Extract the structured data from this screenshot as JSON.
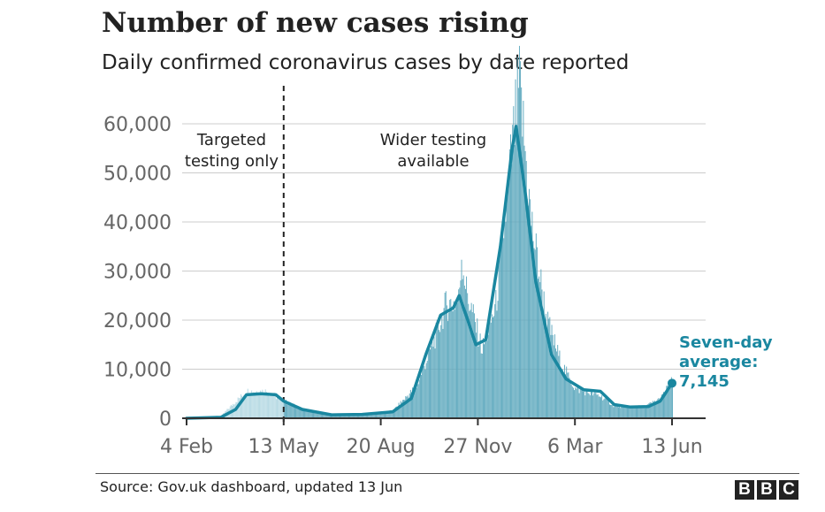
{
  "title": "Number of new cases rising",
  "subtitle": "Daily confirmed coronavirus cases by date reported",
  "source": "Source: Gov.uk dashboard, updated 13 Jun",
  "logo": [
    "B",
    "B",
    "C"
  ],
  "colors": {
    "bar_targeted": "#b5d9e3",
    "bar_wider": "#5fa9be",
    "line": "#1a87a0",
    "annotation": "#1a87a0",
    "grid": "#cccccc",
    "axis_text": "#666666"
  },
  "chart_data": {
    "type": "bar+line",
    "title": "Number of new cases rising",
    "subtitle": "Daily confirmed coronavirus cases by date reported",
    "ylim": [
      0,
      60000
    ],
    "yticks": [
      0,
      10000,
      20000,
      30000,
      40000,
      50000,
      60000
    ],
    "ytick_labels": [
      "0",
      "10,000",
      "20,000",
      "30,000",
      "40,000",
      "50,000",
      "60,000"
    ],
    "xtick_labels": [
      "4 Feb",
      "13 May",
      "20 Aug",
      "27 Nov",
      "6 Mar",
      "13 Jun"
    ],
    "x_range": [
      "2020-02-04",
      "2021-06-13"
    ],
    "grid": true,
    "divider_date": "2020-05-13",
    "phase_labels": [
      {
        "id": "targeted",
        "lines": [
          "Targeted",
          "testing only"
        ]
      },
      {
        "id": "wider",
        "lines": [
          "Wider testing",
          "available"
        ]
      }
    ],
    "seven_day_label": [
      "Seven-day",
      "average:",
      "7,145"
    ],
    "seven_day_value": 7145,
    "series": [
      {
        "name": "Daily confirmed cases",
        "kind": "bar",
        "daily_values_monthly_outline": [
          {
            "date": "2020-02-04",
            "value": 0
          },
          {
            "date": "2020-03-10",
            "value": 500
          },
          {
            "date": "2020-03-25",
            "value": 3500
          },
          {
            "date": "2020-04-05",
            "value": 5500
          },
          {
            "date": "2020-04-25",
            "value": 5500
          },
          {
            "date": "2020-05-13",
            "value": 3500
          },
          {
            "date": "2020-06-01",
            "value": 1800
          },
          {
            "date": "2020-07-01",
            "value": 700
          },
          {
            "date": "2020-08-01",
            "value": 800
          },
          {
            "date": "2020-09-01",
            "value": 1500
          },
          {
            "date": "2020-09-25",
            "value": 6500
          },
          {
            "date": "2020-10-15",
            "value": 17000
          },
          {
            "date": "2020-10-25",
            "value": 23000
          },
          {
            "date": "2020-11-07",
            "value": 24000
          },
          {
            "date": "2020-11-10",
            "value": 33500
          },
          {
            "date": "2020-11-15",
            "value": 26000
          },
          {
            "date": "2020-12-01",
            "value": 14000
          },
          {
            "date": "2020-12-15",
            "value": 23000
          },
          {
            "date": "2020-12-29",
            "value": 50000
          },
          {
            "date": "2021-01-08",
            "value": 68000
          },
          {
            "date": "2021-01-20",
            "value": 40000
          },
          {
            "date": "2021-02-05",
            "value": 20000
          },
          {
            "date": "2021-02-20",
            "value": 11000
          },
          {
            "date": "2021-03-06",
            "value": 6000
          },
          {
            "date": "2021-04-01",
            "value": 4500
          },
          {
            "date": "2021-04-15",
            "value": 2500
          },
          {
            "date": "2021-05-15",
            "value": 2300
          },
          {
            "date": "2021-06-01",
            "value": 4000
          },
          {
            "date": "2021-06-13",
            "value": 7700
          }
        ]
      },
      {
        "name": "Seven-day average",
        "kind": "line",
        "points": [
          {
            "date": "2020-02-04",
            "value": 0
          },
          {
            "date": "2020-03-10",
            "value": 200
          },
          {
            "date": "2020-03-25",
            "value": 1800
          },
          {
            "date": "2020-04-05",
            "value": 4800
          },
          {
            "date": "2020-04-20",
            "value": 5000
          },
          {
            "date": "2020-05-05",
            "value": 4800
          },
          {
            "date": "2020-05-13",
            "value": 3500
          },
          {
            "date": "2020-06-01",
            "value": 1800
          },
          {
            "date": "2020-07-01",
            "value": 700
          },
          {
            "date": "2020-08-01",
            "value": 800
          },
          {
            "date": "2020-09-01",
            "value": 1300
          },
          {
            "date": "2020-09-20",
            "value": 4000
          },
          {
            "date": "2020-10-05",
            "value": 13000
          },
          {
            "date": "2020-10-20",
            "value": 21000
          },
          {
            "date": "2020-11-02",
            "value": 22500
          },
          {
            "date": "2020-11-08",
            "value": 25000
          },
          {
            "date": "2020-11-15",
            "value": 21000
          },
          {
            "date": "2020-11-25",
            "value": 15000
          },
          {
            "date": "2020-12-05",
            "value": 16000
          },
          {
            "date": "2020-12-20",
            "value": 35000
          },
          {
            "date": "2021-01-01",
            "value": 55000
          },
          {
            "date": "2021-01-05",
            "value": 59500
          },
          {
            "date": "2021-01-15",
            "value": 45000
          },
          {
            "date": "2021-01-25",
            "value": 28000
          },
          {
            "date": "2021-02-10",
            "value": 13000
          },
          {
            "date": "2021-02-25",
            "value": 8000
          },
          {
            "date": "2021-03-15",
            "value": 5800
          },
          {
            "date": "2021-04-01",
            "value": 5500
          },
          {
            "date": "2021-04-15",
            "value": 2800
          },
          {
            "date": "2021-05-01",
            "value": 2300
          },
          {
            "date": "2021-05-20",
            "value": 2400
          },
          {
            "date": "2021-06-01",
            "value": 3500
          },
          {
            "date": "2021-06-13",
            "value": 7145
          }
        ]
      }
    ]
  }
}
